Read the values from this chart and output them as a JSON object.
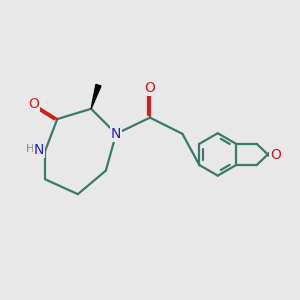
{
  "bg_color": "#e8e8e8",
  "bond_color": "#3a7a6a",
  "N_color": "#2020cc",
  "O_color": "#cc2020",
  "H_color": "#888888",
  "line_width": 1.6,
  "fig_size": [
    3.0,
    3.0
  ],
  "dpi": 100,
  "xlim": [
    0,
    10
  ],
  "ylim": [
    0,
    10
  ]
}
